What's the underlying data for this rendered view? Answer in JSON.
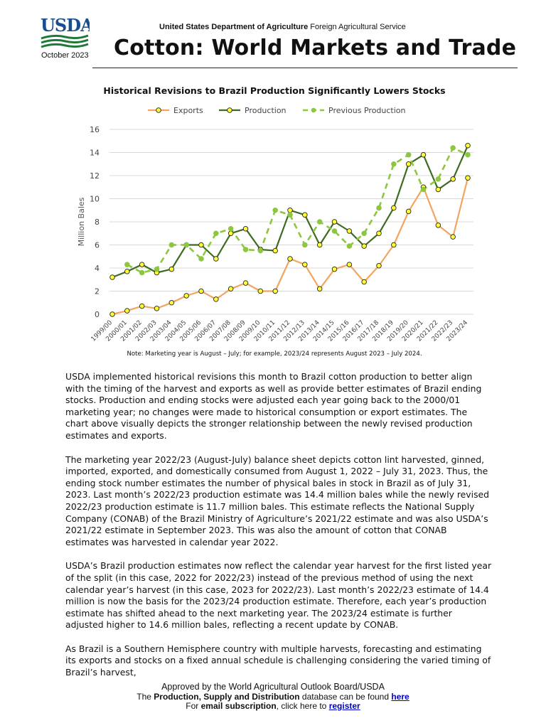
{
  "header": {
    "logo_text": "USDA",
    "date": "October 2023",
    "agency_bold": "United States Department of Agriculture",
    "agency_rest": "Foreign Agricultural Service",
    "title": "Cotton: World Markets and Trade"
  },
  "chart_data": {
    "type": "line",
    "title": "Historical Revisions to Brazil Production Significantly Lowers Stocks",
    "ylabel": "Million Bales",
    "xlabel": "",
    "ylim": [
      0,
      16
    ],
    "yticks": [
      "0",
      "2",
      "4",
      "6",
      "8",
      "10",
      "12",
      "14",
      "16"
    ],
    "legend_position": "top",
    "categories": [
      "1999/00",
      "2000/01",
      "2001/02",
      "2002/03",
      "2003/04",
      "2004/05",
      "2005/06",
      "2006/07",
      "2007/08",
      "2008/09",
      "2009/10",
      "2010/11",
      "2011/12",
      "2012/13",
      "2013/14",
      "2014/15",
      "2015/16",
      "2016/17",
      "2017/18",
      "2018/19",
      "2019/20",
      "2020/21",
      "2021/22",
      "2022/23",
      "2023/24"
    ],
    "series": [
      {
        "name": "Exports",
        "color": "#f4a460",
        "style": "solid",
        "values": [
          0.0,
          0.3,
          0.7,
          0.5,
          1.0,
          1.6,
          2.0,
          1.3,
          2.2,
          2.7,
          2.0,
          2.0,
          4.8,
          4.3,
          2.2,
          3.9,
          4.3,
          2.8,
          4.2,
          6.0,
          8.9,
          11.0,
          7.7,
          6.7,
          11.8
        ]
      },
      {
        "name": "Production",
        "color": "#3d6b1f",
        "style": "solid",
        "values": [
          3.2,
          3.7,
          4.3,
          3.6,
          3.9,
          6.0,
          6.0,
          4.8,
          7.0,
          7.4,
          5.6,
          5.5,
          9.0,
          8.6,
          6.0,
          8.0,
          7.2,
          5.9,
          7.0,
          9.2,
          13.0,
          13.8,
          10.8,
          11.7,
          14.6
        ]
      },
      {
        "name": "Previous Production",
        "color": "#8dc63f",
        "style": "dashed",
        "values": [
          null,
          4.3,
          3.6,
          3.9,
          6.0,
          6.0,
          4.8,
          7.0,
          7.4,
          5.6,
          5.5,
          9.0,
          8.6,
          6.0,
          8.0,
          7.2,
          5.9,
          7.0,
          9.2,
          13.0,
          13.8,
          10.8,
          11.7,
          14.4,
          13.8
        ]
      }
    ],
    "note": "Note: Marketing year is August – July; for example, 2023/24 represents August 2023 – July 2024."
  },
  "body": {
    "paragraphs": [
      "USDA implemented historical revisions this month to Brazil cotton production to better align with the timing of the harvest and exports as well as provide better estimates of Brazil ending stocks. Production and ending stocks were adjusted each year going back to the 2000/01 marketing year; no changes were made to historical consumption or export estimates. The chart above visually depicts the stronger relationship between the newly revised production estimates and exports.",
      "The marketing year 2022/23 (August-July) balance sheet depicts cotton lint harvested, ginned, imported, exported, and domestically consumed from August 1, 2022 – July 31, 2023. Thus, the ending stock number estimates the number of physical bales in stock in Brazil as of July 31, 2023. Last month’s 2022/23 production estimate was 14.4 million bales while the newly revised 2022/23 production estimate is 11.7 million bales. This estimate reflects the National Supply Company (CONAB) of the Brazil Ministry of Agriculture’s 2021/22 estimate and was also USDA’s 2021/22 estimate in September 2023. This was also the amount of cotton that CONAB estimates was harvested in calendar year 2022.",
      "USDA’s Brazil production estimates now reflect the calendar year harvest for the first listed year of the split (in this case, 2022 for 2022/23) instead of the previous method of using the next calendar year’s harvest (in this case, 2023 for 2022/23). Last month’s 2022/23 estimate of 14.4 million is now the basis for the 2023/24 production estimate. Therefore, each year’s production estimate has shifted ahead to the next marketing year. The 2023/24 estimate is further adjusted higher to 14.6 million bales, reflecting a recent update by CONAB.",
      "As Brazil is a Southern Hemisphere country with multiple harvests, forecasting and estimating its exports and stocks on a fixed annual schedule is challenging considering the varied timing of Brazil’s harvest,"
    ]
  },
  "footer": {
    "line1": "Approved by the World Agricultural Outlook Board/USDA",
    "line2_pre": "The ",
    "line2_bold": "Production, Supply and Distribution",
    "line2_mid": " database can be found ",
    "line2_link": "here",
    "line3_pre": "For ",
    "line3_bold": "email subscription",
    "line3_mid": ", click here to ",
    "line3_link": "register"
  }
}
